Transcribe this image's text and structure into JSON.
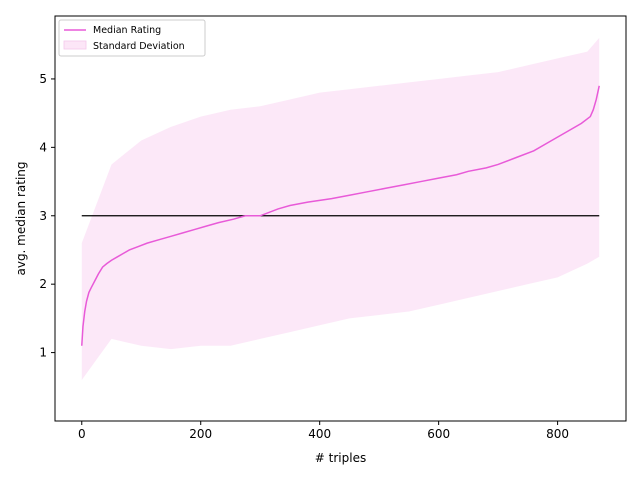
{
  "chart_data": {
    "type": "line",
    "title": "",
    "xlabel": "# triples",
    "ylabel": "avg. median rating",
    "xlim": [
      -45,
      915
    ],
    "ylim": [
      0,
      5.92
    ],
    "x_ticks": [
      0,
      200,
      400,
      600,
      800
    ],
    "x_tick_labels": [
      "0",
      "200",
      "400",
      "600",
      "800"
    ],
    "y_ticks": [
      1,
      2,
      3,
      4,
      5
    ],
    "y_tick_labels": [
      "1",
      "2",
      "3",
      "4",
      "5"
    ],
    "grid": false,
    "legend": {
      "placement": "top-left",
      "entries": [
        {
          "label": "Median Rating",
          "color": "#e85ad8",
          "kind": "line"
        },
        {
          "label": "Standard Deviation",
          "color": "#fce6f7",
          "kind": "band"
        }
      ]
    },
    "series": [
      {
        "name": "Median Rating",
        "color": "#e85ad8",
        "x": [
          0,
          2,
          5,
          8,
          12,
          16,
          22,
          28,
          35,
          42,
          50,
          60,
          70,
          80,
          95,
          110,
          130,
          150,
          170,
          190,
          210,
          230,
          255,
          275,
          300,
          330,
          350,
          380,
          420,
          450,
          480,
          510,
          540,
          570,
          600,
          630,
          650,
          680,
          700,
          730,
          760,
          790,
          820,
          840,
          855,
          860,
          865,
          870
        ],
        "y": [
          1.1,
          1.38,
          1.6,
          1.75,
          1.88,
          1.95,
          2.05,
          2.15,
          2.25,
          2.3,
          2.35,
          2.4,
          2.45,
          2.5,
          2.55,
          2.6,
          2.65,
          2.7,
          2.75,
          2.8,
          2.85,
          2.9,
          2.95,
          3.0,
          3.0,
          3.1,
          3.15,
          3.2,
          3.25,
          3.3,
          3.35,
          3.4,
          3.45,
          3.5,
          3.55,
          3.6,
          3.65,
          3.7,
          3.75,
          3.85,
          3.95,
          4.1,
          4.25,
          4.35,
          4.45,
          4.55,
          4.7,
          4.9
        ]
      },
      {
        "name": "Standard Deviation",
        "color": "#fce6f7",
        "x": [
          0,
          50,
          100,
          150,
          200,
          250,
          300,
          350,
          400,
          450,
          500,
          550,
          600,
          650,
          700,
          750,
          800,
          850,
          870
        ],
        "upper": [
          2.6,
          3.75,
          4.1,
          4.3,
          4.45,
          4.55,
          4.6,
          4.7,
          4.8,
          4.85,
          4.9,
          4.95,
          5.0,
          5.05,
          5.1,
          5.2,
          5.3,
          5.4,
          5.6
        ],
        "lower": [
          0.6,
          1.2,
          1.1,
          1.05,
          1.1,
          1.1,
          1.2,
          1.3,
          1.4,
          1.5,
          1.55,
          1.6,
          1.7,
          1.8,
          1.9,
          2.0,
          2.1,
          2.3,
          2.4
        ]
      }
    ],
    "reference_line": {
      "y": 3,
      "x_start": 0,
      "x_end": 870,
      "color": "#000000"
    }
  }
}
